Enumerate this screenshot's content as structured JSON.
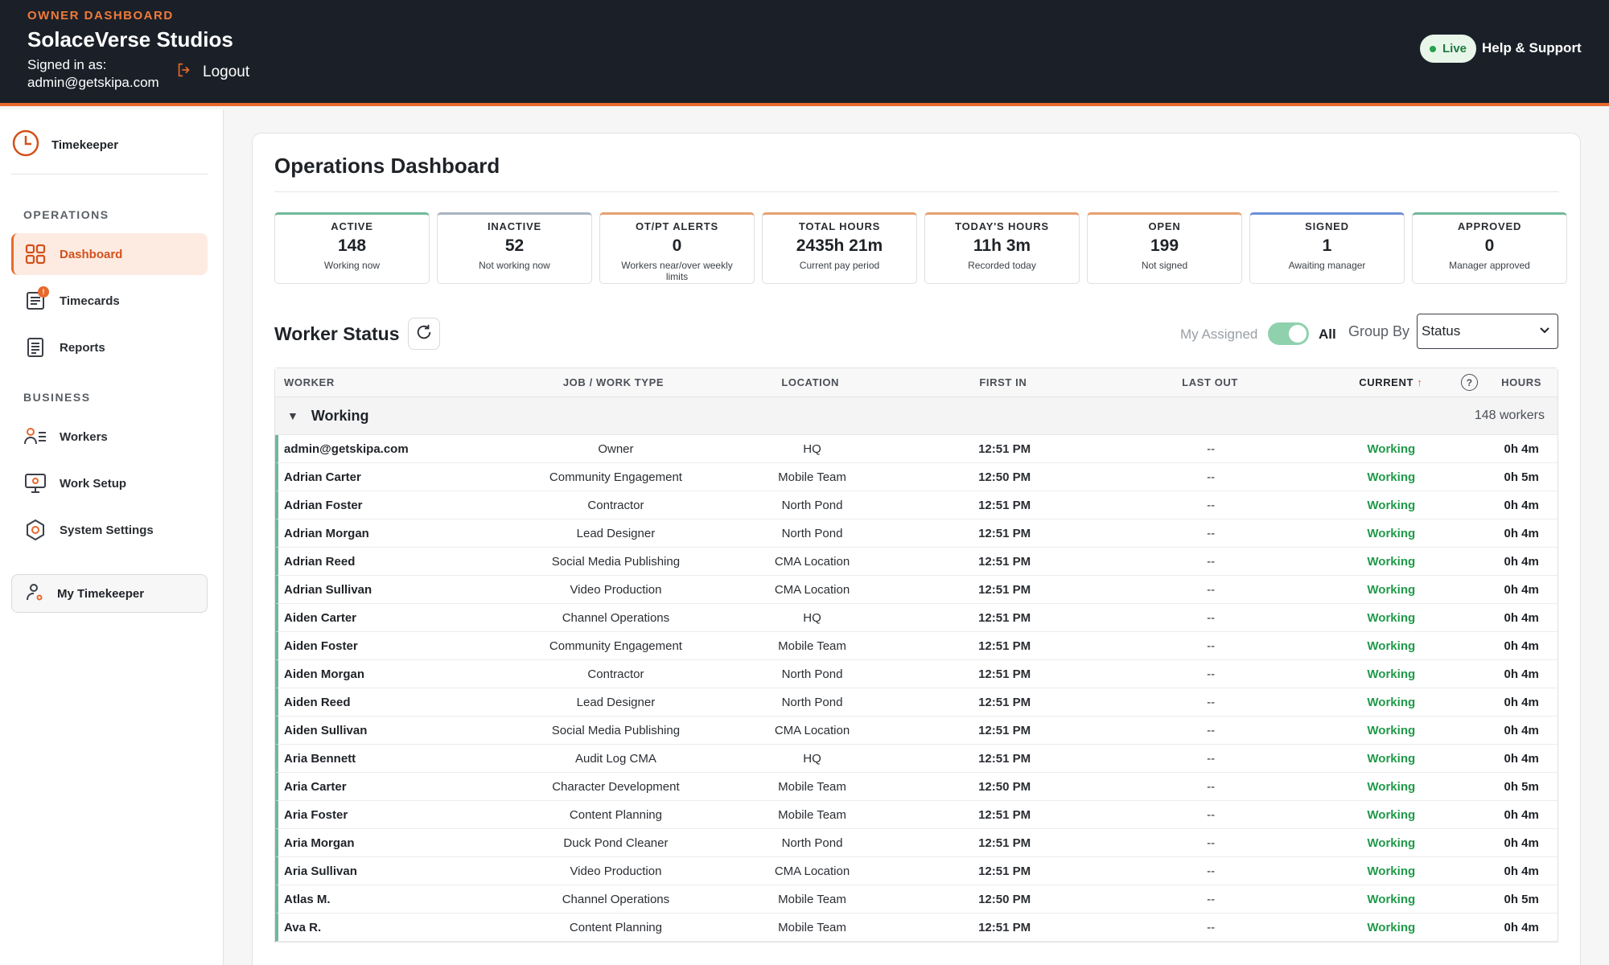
{
  "header": {
    "eyebrow": "OWNER DASHBOARD",
    "org_name": "SolaceVerse Studios",
    "signed_in_label": "Signed in as:",
    "signed_in_email": "admin@getskipa.com",
    "logout_label": "Logout",
    "live_label": "Live",
    "help_label": "Help & Support"
  },
  "sidebar": {
    "brand": "Timekeeper",
    "operations_label": "OPERATIONS",
    "business_label": "BUSINESS",
    "items": [
      {
        "label": "Dashboard",
        "icon": "grid-icon",
        "active": true
      },
      {
        "label": "Timecards",
        "icon": "timecard-icon",
        "badge": "!"
      },
      {
        "label": "Reports",
        "icon": "report-icon"
      },
      {
        "label": "Workers",
        "icon": "workers-icon"
      },
      {
        "label": "Work Setup",
        "icon": "monitor-icon"
      },
      {
        "label": "System Settings",
        "icon": "settings-icon"
      }
    ],
    "my_timekeeper": "My Timekeeper"
  },
  "main": {
    "title": "Operations Dashboard",
    "stats": [
      {
        "label": "ACTIVE",
        "value": "148",
        "sub": "Working now",
        "color": "#6fb89a"
      },
      {
        "label": "INACTIVE",
        "value": "52",
        "sub": "Not working now",
        "color": "#a9b4c0"
      },
      {
        "label": "OT/PT ALERTS",
        "value": "0",
        "sub": "Workers near/over weekly limits",
        "color": "#e8a070"
      },
      {
        "label": "TOTAL HOURS",
        "value": "2435h 21m",
        "sub": "Current pay period",
        "color": "#e8a070"
      },
      {
        "label": "TODAY'S HOURS",
        "value": "11h 3m",
        "sub": "Recorded today",
        "color": "#e8a070"
      },
      {
        "label": "OPEN",
        "value": "199",
        "sub": "Not signed",
        "color": "#e8a070"
      },
      {
        "label": "SIGNED",
        "value": "1",
        "sub": "Awaiting manager",
        "color": "#6b8fd8"
      },
      {
        "label": "APPROVED",
        "value": "0",
        "sub": "Manager approved",
        "color": "#6fb89a"
      }
    ],
    "worker_status": {
      "title": "Worker Status",
      "my_assigned_label": "My Assigned",
      "all_label": "All",
      "group_by_label": "Group By",
      "group_by_value": "Status"
    },
    "table": {
      "headers": {
        "worker": "WORKER",
        "job": "JOB / WORK TYPE",
        "location": "LOCATION",
        "first_in": "FIRST IN",
        "last_out": "LAST OUT",
        "current": "CURRENT",
        "hours": "HOURS"
      },
      "group": {
        "name": "Working",
        "count": "148 workers"
      },
      "rows": [
        {
          "worker": "admin@getskipa.com",
          "job": "Owner",
          "location": "HQ",
          "first_in": "12:51 PM",
          "last_out": "--",
          "current": "Working",
          "hours": "0h 4m"
        },
        {
          "worker": "Adrian Carter",
          "job": "Community Engagement",
          "location": "Mobile Team",
          "first_in": "12:50 PM",
          "last_out": "--",
          "current": "Working",
          "hours": "0h 5m"
        },
        {
          "worker": "Adrian Foster",
          "job": "Contractor",
          "location": "North Pond",
          "first_in": "12:51 PM",
          "last_out": "--",
          "current": "Working",
          "hours": "0h 4m"
        },
        {
          "worker": "Adrian Morgan",
          "job": "Lead Designer",
          "location": "North Pond",
          "first_in": "12:51 PM",
          "last_out": "--",
          "current": "Working",
          "hours": "0h 4m"
        },
        {
          "worker": "Adrian Reed",
          "job": "Social Media Publishing",
          "location": "CMA Location",
          "first_in": "12:51 PM",
          "last_out": "--",
          "current": "Working",
          "hours": "0h 4m"
        },
        {
          "worker": "Adrian Sullivan",
          "job": "Video Production",
          "location": "CMA Location",
          "first_in": "12:51 PM",
          "last_out": "--",
          "current": "Working",
          "hours": "0h 4m"
        },
        {
          "worker": "Aiden Carter",
          "job": "Channel Operations",
          "location": "HQ",
          "first_in": "12:51 PM",
          "last_out": "--",
          "current": "Working",
          "hours": "0h 4m"
        },
        {
          "worker": "Aiden Foster",
          "job": "Community Engagement",
          "location": "Mobile Team",
          "first_in": "12:51 PM",
          "last_out": "--",
          "current": "Working",
          "hours": "0h 4m"
        },
        {
          "worker": "Aiden Morgan",
          "job": "Contractor",
          "location": "North Pond",
          "first_in": "12:51 PM",
          "last_out": "--",
          "current": "Working",
          "hours": "0h 4m"
        },
        {
          "worker": "Aiden Reed",
          "job": "Lead Designer",
          "location": "North Pond",
          "first_in": "12:51 PM",
          "last_out": "--",
          "current": "Working",
          "hours": "0h 4m"
        },
        {
          "worker": "Aiden Sullivan",
          "job": "Social Media Publishing",
          "location": "CMA Location",
          "first_in": "12:51 PM",
          "last_out": "--",
          "current": "Working",
          "hours": "0h 4m"
        },
        {
          "worker": "Aria Bennett",
          "job": "Audit Log CMA",
          "location": "HQ",
          "first_in": "12:51 PM",
          "last_out": "--",
          "current": "Working",
          "hours": "0h 4m"
        },
        {
          "worker": "Aria Carter",
          "job": "Character Development",
          "location": "Mobile Team",
          "first_in": "12:50 PM",
          "last_out": "--",
          "current": "Working",
          "hours": "0h 5m"
        },
        {
          "worker": "Aria Foster",
          "job": "Content Planning",
          "location": "Mobile Team",
          "first_in": "12:51 PM",
          "last_out": "--",
          "current": "Working",
          "hours": "0h 4m"
        },
        {
          "worker": "Aria Morgan",
          "job": "Duck Pond Cleaner",
          "location": "North Pond",
          "first_in": "12:51 PM",
          "last_out": "--",
          "current": "Working",
          "hours": "0h 4m"
        },
        {
          "worker": "Aria Sullivan",
          "job": "Video Production",
          "location": "CMA Location",
          "first_in": "12:51 PM",
          "last_out": "--",
          "current": "Working",
          "hours": "0h 4m"
        },
        {
          "worker": "Atlas M.",
          "job": "Channel Operations",
          "location": "Mobile Team",
          "first_in": "12:50 PM",
          "last_out": "--",
          "current": "Working",
          "hours": "0h 5m"
        },
        {
          "worker": "Ava R.",
          "job": "Content Planning",
          "location": "Mobile Team",
          "first_in": "12:51 PM",
          "last_out": "--",
          "current": "Working",
          "hours": "0h 4m"
        }
      ]
    }
  }
}
